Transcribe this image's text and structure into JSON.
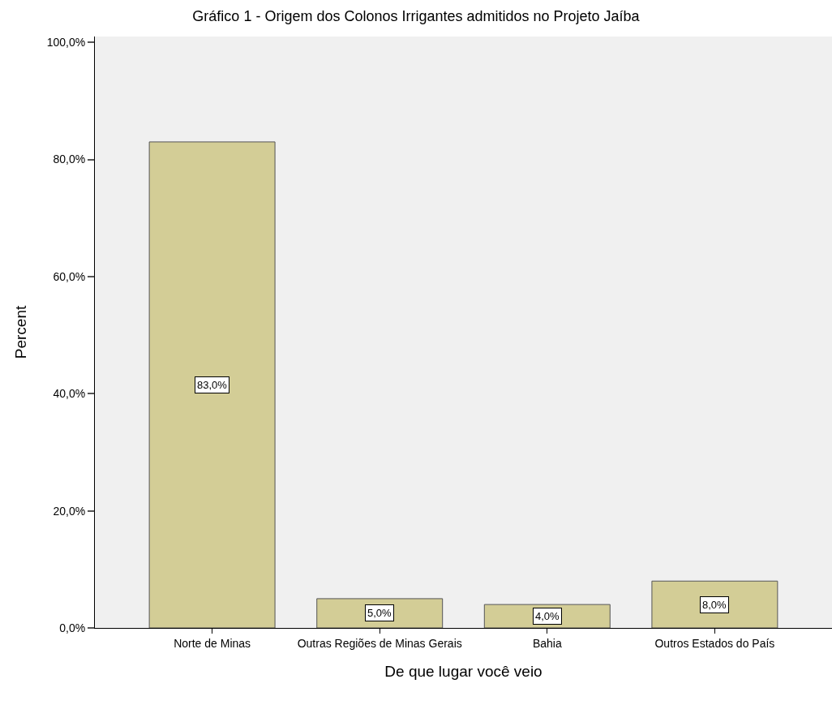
{
  "chart_data": {
    "type": "bar",
    "title": "Gráfico 1 - Origem dos Colonos Irrigantes admitidos no Projeto Jaíba",
    "xlabel": "De que lugar você veio",
    "ylabel": "Percent",
    "categories": [
      "Norte de Minas",
      "Outras Regiões de Minas Gerais",
      "Bahia",
      "Outros Estados do País"
    ],
    "values": [
      83,
      5,
      4,
      8
    ],
    "value_labels": [
      "83,0%",
      "5,0%",
      "4,0%",
      "8,0%"
    ],
    "color": "#d3cd96",
    "ylim": [
      0,
      101
    ],
    "yticks": [
      {
        "value": 0,
        "label": "0,0%"
      },
      {
        "value": 20,
        "label": "20,0%"
      },
      {
        "value": 40,
        "label": "40,0%"
      },
      {
        "value": 60,
        "label": "60,0%"
      },
      {
        "value": 80,
        "label": "80,0%"
      },
      {
        "value": 100,
        "label": "100,0%"
      }
    ],
    "grid": false,
    "legend": false
  }
}
